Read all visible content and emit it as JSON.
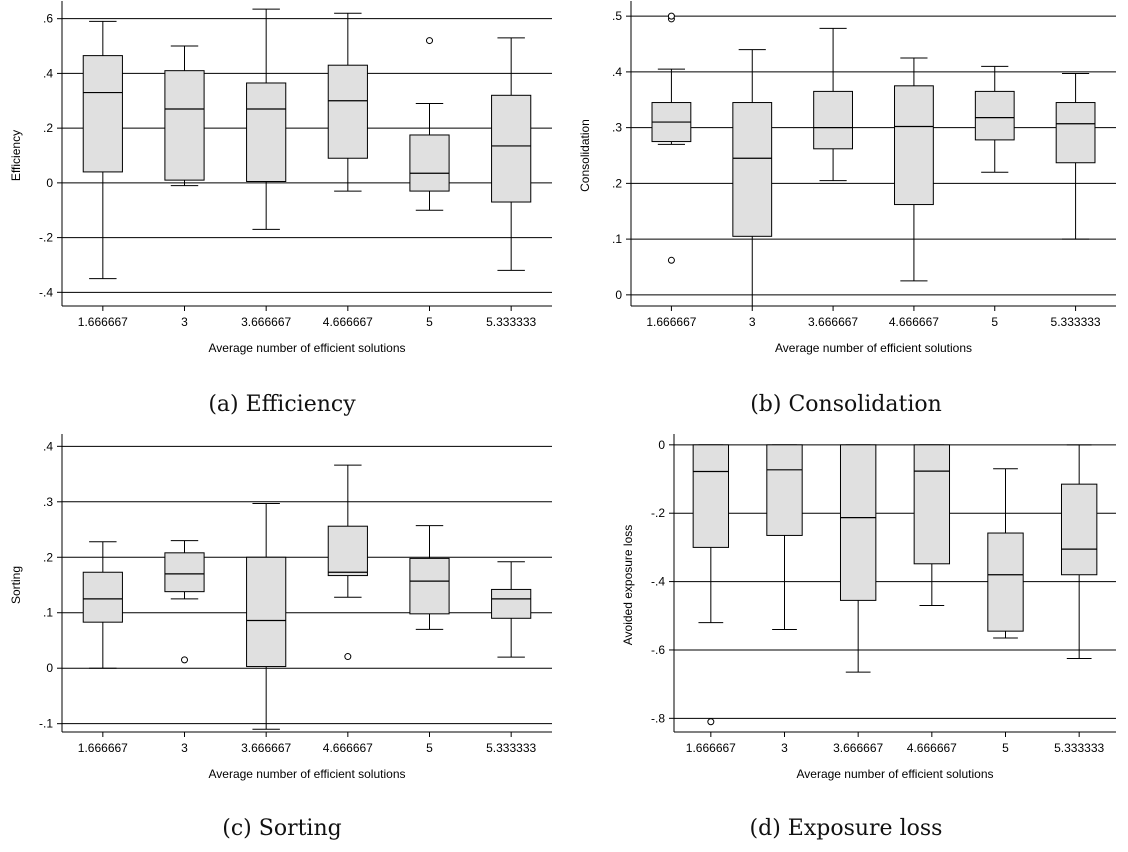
{
  "charts": [
    {
      "caption": "(a) Efficiency",
      "chart_data": {
        "type": "box",
        "ylabel": "Efficiency",
        "xlabel": "Average number of efficient solutions",
        "categories": [
          "1.666667",
          "3",
          "3.666667",
          "4.666667",
          "5",
          "5.333333"
        ],
        "ylim": [
          -0.45,
          0.65
        ],
        "yticks": [
          -0.4,
          -0.2,
          0,
          0.2,
          0.4,
          0.6
        ],
        "yticklabels": [
          "-.4",
          "-.2",
          "0",
          ".2",
          ".4",
          ".6"
        ],
        "grid": true,
        "boxes": [
          {
            "min": -0.35,
            "q1": 0.04,
            "median": 0.33,
            "q3": 0.465,
            "max": 0.59,
            "outliers": []
          },
          {
            "min": -0.01,
            "q1": 0.01,
            "median": 0.27,
            "q3": 0.41,
            "max": 0.5,
            "outliers": []
          },
          {
            "min": -0.17,
            "q1": 0.005,
            "median": 0.27,
            "q3": 0.365,
            "max": 0.635,
            "outliers": []
          },
          {
            "min": -0.03,
            "q1": 0.09,
            "median": 0.3,
            "q3": 0.43,
            "max": 0.62,
            "outliers": []
          },
          {
            "min": -0.1,
            "q1": -0.03,
            "median": 0.035,
            "q3": 0.175,
            "max": 0.29,
            "outliers": [
              0.52
            ]
          },
          {
            "min": -0.32,
            "q1": -0.07,
            "median": 0.135,
            "q3": 0.32,
            "max": 0.53,
            "outliers": []
          }
        ]
      }
    },
    {
      "caption": "(b) Consolidation",
      "chart_data": {
        "type": "box",
        "ylabel": "Consolidation",
        "xlabel": "Average number of efficient solutions",
        "categories": [
          "1.666667",
          "3",
          "3.666667",
          "4.666667",
          "5",
          "5.333333"
        ],
        "ylim": [
          -0.02,
          0.52
        ],
        "yticks": [
          0,
          0.1,
          0.2,
          0.3,
          0.4,
          0.5
        ],
        "yticklabels": [
          "0",
          ".1",
          ".2",
          ".3",
          ".4",
          ".5"
        ],
        "grid": true,
        "boxes": [
          {
            "min": 0.27,
            "q1": 0.275,
            "median": 0.31,
            "q3": 0.345,
            "max": 0.405,
            "outliers": [
              0.062,
              0.495,
              0.5
            ]
          },
          {
            "min": -0.02,
            "q1": 0.105,
            "median": 0.245,
            "q3": 0.345,
            "max": 0.44,
            "outliers": []
          },
          {
            "min": 0.205,
            "q1": 0.262,
            "median": 0.3,
            "q3": 0.365,
            "max": 0.478,
            "outliers": []
          },
          {
            "min": 0.025,
            "q1": 0.162,
            "median": 0.302,
            "q3": 0.375,
            "max": 0.425,
            "outliers": []
          },
          {
            "min": 0.22,
            "q1": 0.278,
            "median": 0.318,
            "q3": 0.365,
            "max": 0.41,
            "outliers": []
          },
          {
            "min": 0.1,
            "q1": 0.237,
            "median": 0.307,
            "q3": 0.345,
            "max": 0.397,
            "outliers": []
          }
        ]
      }
    },
    {
      "caption": "(c) Sorting",
      "chart_data": {
        "type": "box",
        "ylabel": "Sorting",
        "xlabel": "Average number of efficient solutions",
        "categories": [
          "1.666667",
          "3",
          "3.666667",
          "4.666667",
          "5",
          "5.333333"
        ],
        "ylim": [
          -0.115,
          0.415
        ],
        "yticks": [
          -0.1,
          0,
          0.1,
          0.2,
          0.3,
          0.4
        ],
        "yticklabels": [
          "-.1",
          "0",
          ".1",
          ".2",
          ".3",
          ".4"
        ],
        "grid": true,
        "boxes": [
          {
            "min": 0.0,
            "q1": 0.083,
            "median": 0.125,
            "q3": 0.173,
            "max": 0.228,
            "outliers": []
          },
          {
            "min": 0.125,
            "q1": 0.138,
            "median": 0.17,
            "q3": 0.208,
            "max": 0.23,
            "outliers": [
              0.015
            ]
          },
          {
            "min": -0.11,
            "q1": 0.003,
            "median": 0.086,
            "q3": 0.2,
            "max": 0.297,
            "outliers": []
          },
          {
            "min": 0.128,
            "q1": 0.167,
            "median": 0.173,
            "q3": 0.256,
            "max": 0.366,
            "outliers": [
              0.021
            ]
          },
          {
            "min": 0.07,
            "q1": 0.098,
            "median": 0.157,
            "q3": 0.198,
            "max": 0.257,
            "outliers": []
          },
          {
            "min": 0.02,
            "q1": 0.09,
            "median": 0.125,
            "q3": 0.142,
            "max": 0.192,
            "outliers": []
          }
        ]
      }
    },
    {
      "caption": "(d) Exposure loss",
      "chart_data": {
        "type": "box",
        "ylabel": "Avoided exposure loss",
        "xlabel": "Average number of efficient solutions",
        "categories": [
          "1.666667",
          "3",
          "3.666667",
          "4.666667",
          "5",
          "5.333333"
        ],
        "ylim": [
          -0.84,
          0.02
        ],
        "yticks": [
          -0.8,
          -0.6,
          -0.4,
          -0.2,
          0
        ],
        "yticklabels": [
          "-.8",
          "-.6",
          "-.4",
          "-.2",
          "0"
        ],
        "grid": true,
        "boxes": [
          {
            "min": -0.52,
            "q1": -0.3,
            "median": -0.078,
            "q3": 0.0,
            "max": 0.0,
            "outliers": [
              -0.81
            ]
          },
          {
            "min": -0.54,
            "q1": -0.265,
            "median": -0.073,
            "q3": 0.0,
            "max": 0.0,
            "outliers": []
          },
          {
            "min": -0.665,
            "q1": -0.455,
            "median": -0.213,
            "q3": 0.0,
            "max": 0.0,
            "outliers": []
          },
          {
            "min": -0.47,
            "q1": -0.348,
            "median": -0.077,
            "q3": 0.0,
            "max": 0.0,
            "outliers": []
          },
          {
            "min": -0.565,
            "q1": -0.545,
            "median": -0.38,
            "q3": -0.258,
            "max": -0.07,
            "outliers": []
          },
          {
            "min": -0.625,
            "q1": -0.38,
            "median": -0.305,
            "q3": -0.115,
            "max": 0.0,
            "outliers": []
          }
        ]
      }
    }
  ]
}
